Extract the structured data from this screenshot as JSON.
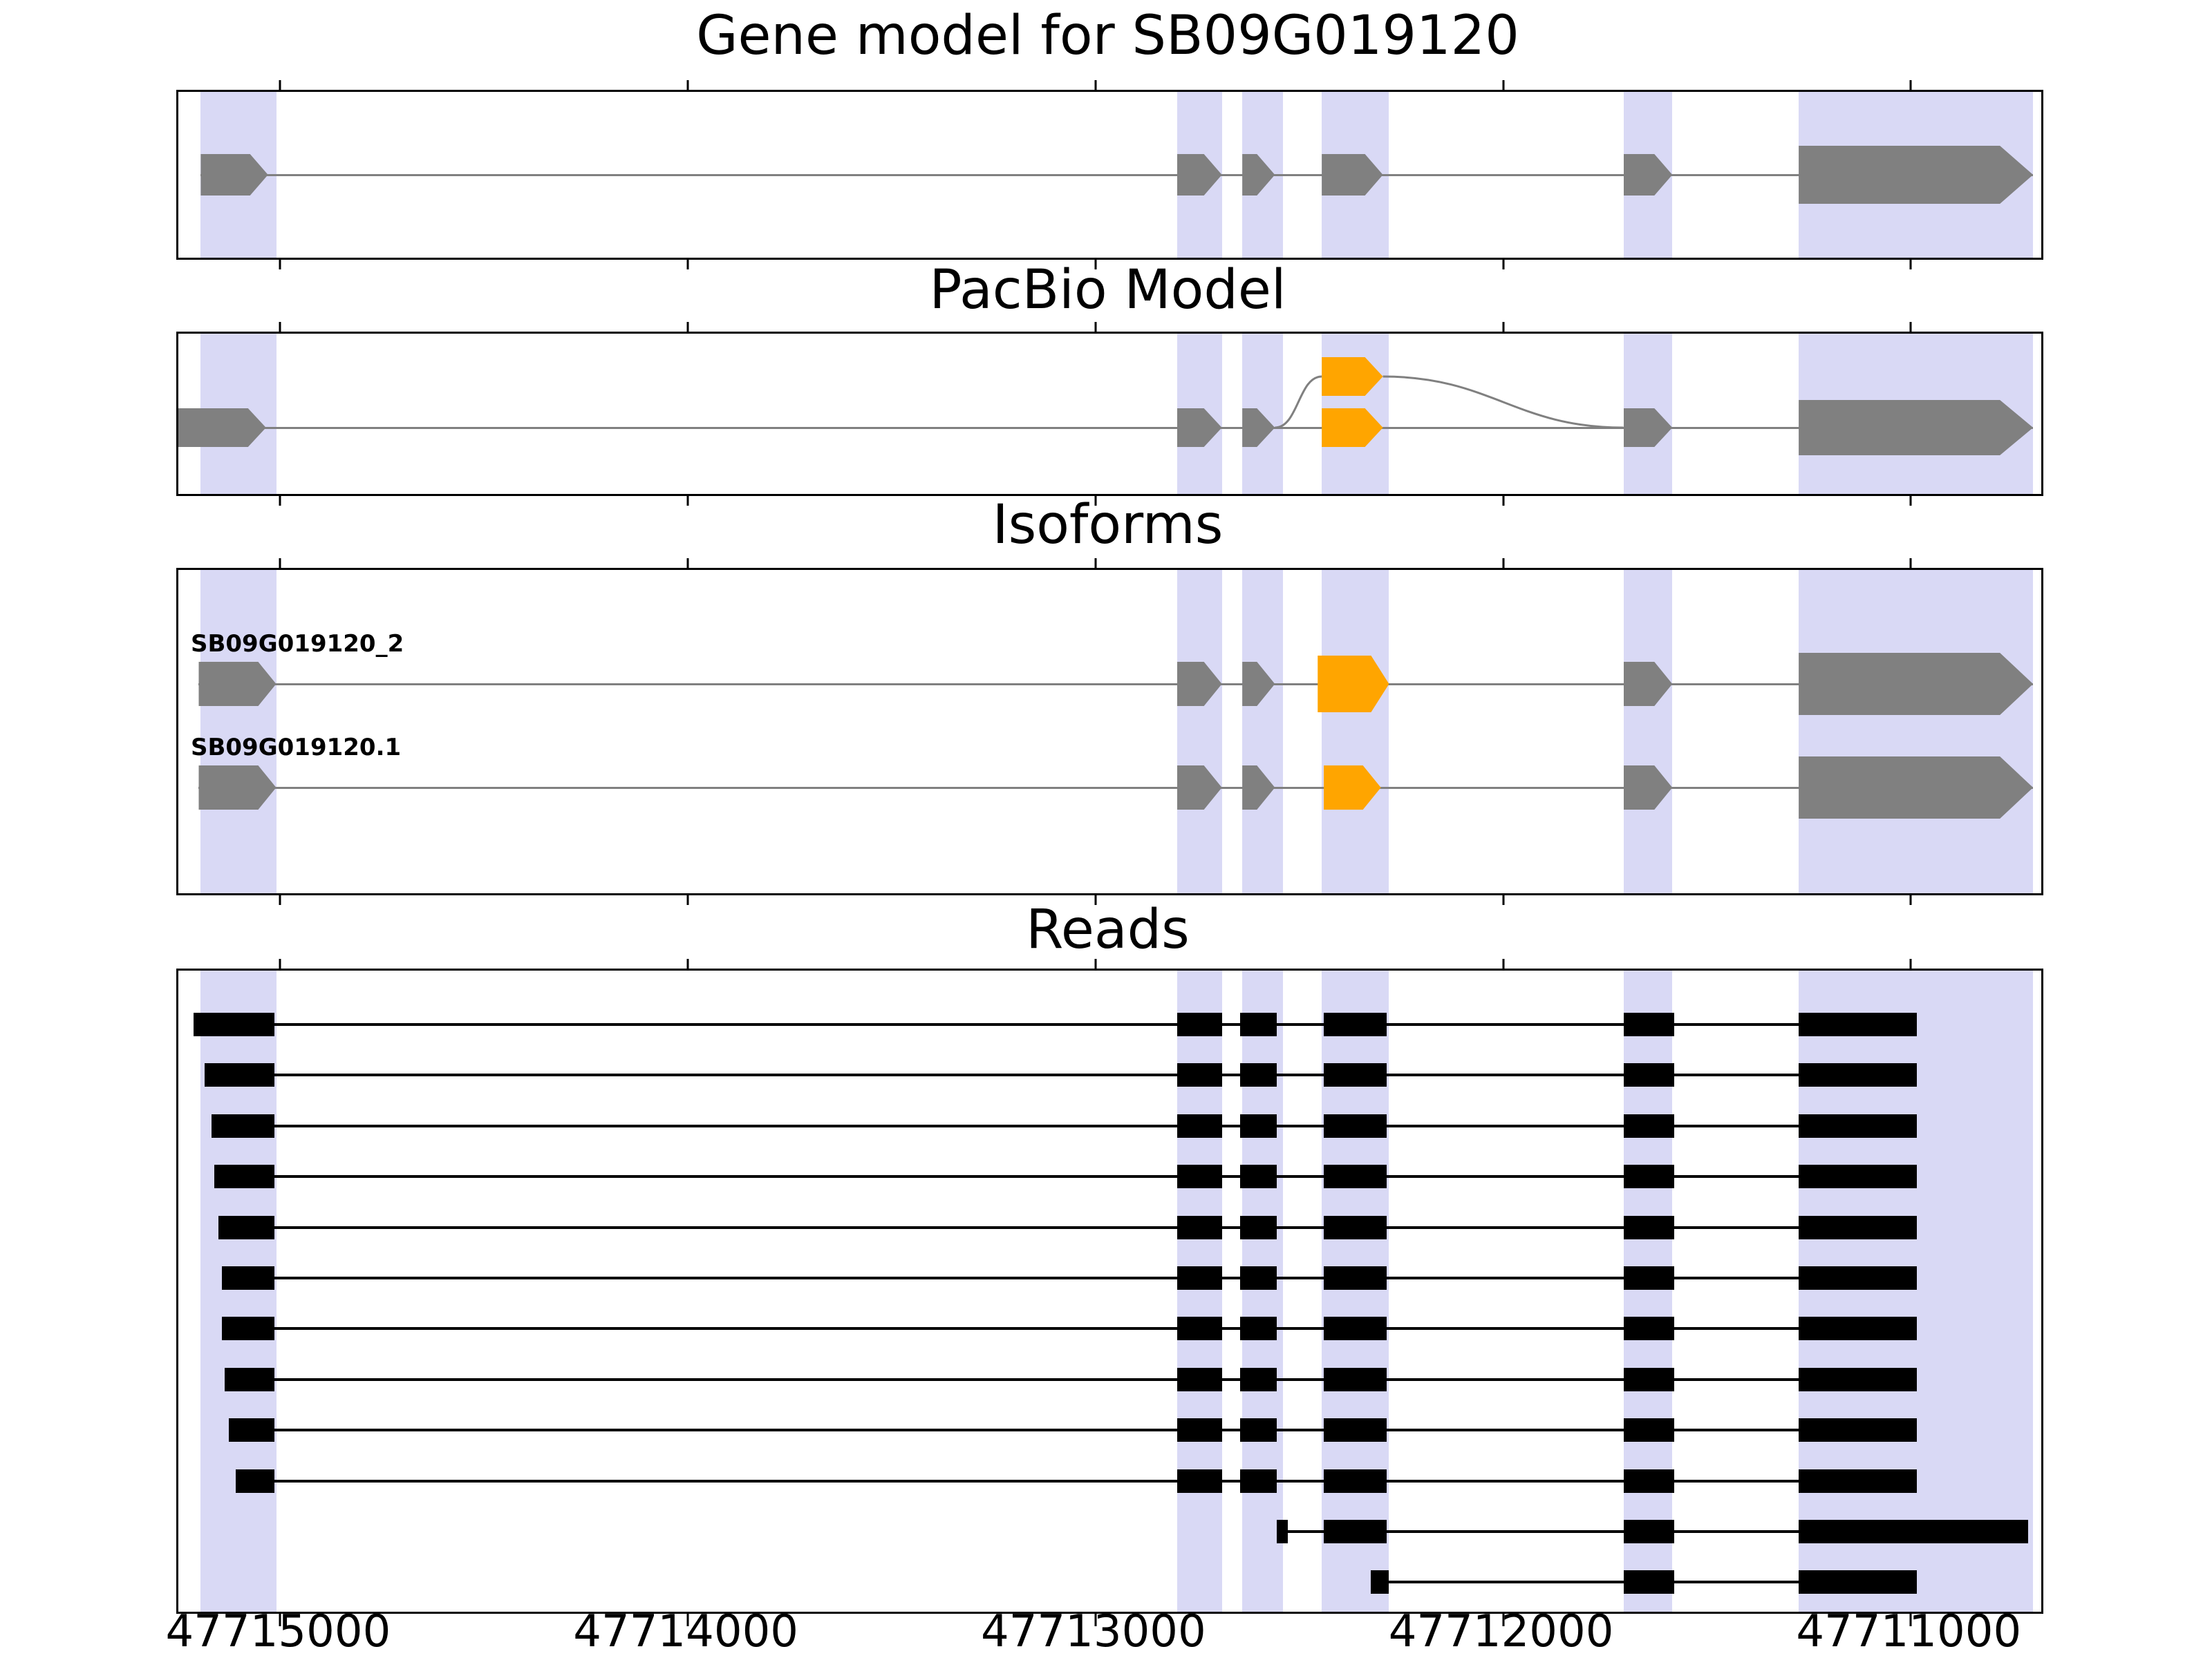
{
  "colors": {
    "background": "#ffffff",
    "band": "#d9d9f5",
    "gene": "#808080",
    "alt_exon": "#FFA500",
    "read": "#000000",
    "intron_line": "#808080",
    "border": "#000000"
  },
  "chart_data": {
    "type": "table",
    "description": "Genome-browser style figure with four stacked tracks (gene model, PacBio model, isoforms, long reads). X axis is genomic position in bp, decreasing left to right (minus-strand gene). Shaded vertical bands mark exon regions; orange exons mark the alternatively spliced exon.",
    "axis": {
      "left_value": 47715250,
      "right_value": 47710680,
      "ticks": [
        47715000,
        47714000,
        47713000,
        47712000,
        47711000
      ],
      "tick_labels": [
        "47715000",
        "47714000",
        "47713000",
        "47712000",
        "47711000"
      ]
    },
    "highlight_bands": [
      {
        "from": 47715195,
        "to": 47715010
      },
      {
        "from": 47712800,
        "to": 47712690
      },
      {
        "from": 47712640,
        "to": 47712540
      },
      {
        "from": 47712445,
        "to": 47712280
      },
      {
        "from": 47711705,
        "to": 47711585
      },
      {
        "from": 47711275,
        "to": 47710700
      }
    ],
    "panels": {
      "gene_model": {
        "title": "Gene model for SB09G019120",
        "exons": [
          {
            "from": 47715195,
            "to": 47715030,
            "size": "normal"
          },
          {
            "from": 47712800,
            "to": 47712690,
            "size": "normal"
          },
          {
            "from": 47712640,
            "to": 47712560,
            "size": "normal"
          },
          {
            "from": 47712445,
            "to": 47712295,
            "size": "normal"
          },
          {
            "from": 47711705,
            "to": 47711585,
            "size": "normal"
          },
          {
            "from": 47711275,
            "to": 47710700,
            "size": "large"
          }
        ]
      },
      "pacbio_model": {
        "title": "PacBio Model",
        "exons": [
          {
            "from": 47715250,
            "to": 47715035,
            "size": "normal"
          },
          {
            "from": 47712800,
            "to": 47712690,
            "size": "normal"
          },
          {
            "from": 47712640,
            "to": 47712560,
            "size": "normal"
          },
          {
            "from": 47711705,
            "to": 47711585,
            "size": "normal"
          },
          {
            "from": 47711275,
            "to": 47710700,
            "size": "large"
          }
        ],
        "upper_alt_exon": {
          "from": 47712445,
          "to": 47712295,
          "color": "orange"
        },
        "main_alt_exon": {
          "from": 47712445,
          "to": 47712295,
          "color": "orange"
        }
      },
      "isoforms": {
        "title": "Isoforms",
        "rows": [
          {
            "label": "SB09G019120_2",
            "exons": [
              {
                "from": 47715200,
                "to": 47715010,
                "size": "normal"
              },
              {
                "from": 47712800,
                "to": 47712690,
                "size": "normal"
              },
              {
                "from": 47712640,
                "to": 47712560,
                "size": "normal"
              },
              {
                "from": 47712455,
                "to": 47712280,
                "size": "tall",
                "color": "orange"
              },
              {
                "from": 47711705,
                "to": 47711585,
                "size": "normal"
              },
              {
                "from": 47711275,
                "to": 47710700,
                "size": "large"
              }
            ]
          },
          {
            "label": "SB09G019120.1",
            "exons": [
              {
                "from": 47715200,
                "to": 47715010,
                "size": "normal"
              },
              {
                "from": 47712800,
                "to": 47712690,
                "size": "normal"
              },
              {
                "from": 47712640,
                "to": 47712560,
                "size": "normal"
              },
              {
                "from": 47712440,
                "to": 47712300,
                "size": "normal",
                "color": "orange"
              },
              {
                "from": 47711705,
                "to": 47711585,
                "size": "normal"
              },
              {
                "from": 47711275,
                "to": 47710700,
                "size": "large"
              }
            ]
          }
        ]
      },
      "reads": {
        "title": "Reads",
        "rows": [
          {
            "blocks": [
              [
                47715212,
                47715015
              ],
              [
                47712800,
                47712690
              ],
              [
                47712645,
                47712555
              ],
              [
                47712440,
                47712285
              ],
              [
                47711705,
                47711580
              ],
              [
                47711275,
                47710985
              ]
            ]
          },
          {
            "blocks": [
              [
                47715186,
                47715015
              ],
              [
                47712800,
                47712690
              ],
              [
                47712645,
                47712555
              ],
              [
                47712440,
                47712285
              ],
              [
                47711705,
                47711580
              ],
              [
                47711275,
                47710985
              ]
            ]
          },
          {
            "blocks": [
              [
                47715169,
                47715015
              ],
              [
                47712800,
                47712690
              ],
              [
                47712645,
                47712555
              ],
              [
                47712440,
                47712285
              ],
              [
                47711705,
                47711580
              ],
              [
                47711275,
                47710985
              ]
            ]
          },
          {
            "blocks": [
              [
                47715161,
                47715015
              ],
              [
                47712800,
                47712690
              ],
              [
                47712645,
                47712555
              ],
              [
                47712440,
                47712285
              ],
              [
                47711705,
                47711580
              ],
              [
                47711275,
                47710985
              ]
            ]
          },
          {
            "blocks": [
              [
                47715152,
                47715015
              ],
              [
                47712800,
                47712690
              ],
              [
                47712645,
                47712555
              ],
              [
                47712440,
                47712285
              ],
              [
                47711705,
                47711580
              ],
              [
                47711275,
                47710985
              ]
            ]
          },
          {
            "blocks": [
              [
                47715144,
                47715015
              ],
              [
                47712800,
                47712690
              ],
              [
                47712645,
                47712555
              ],
              [
                47712440,
                47712285
              ],
              [
                47711705,
                47711580
              ],
              [
                47711275,
                47710985
              ]
            ]
          },
          {
            "blocks": [
              [
                47715144,
                47715015
              ],
              [
                47712800,
                47712690
              ],
              [
                47712645,
                47712555
              ],
              [
                47712440,
                47712285
              ],
              [
                47711705,
                47711580
              ],
              [
                47711275,
                47710985
              ]
            ]
          },
          {
            "blocks": [
              [
                47715136,
                47715015
              ],
              [
                47712800,
                47712690
              ],
              [
                47712645,
                47712555
              ],
              [
                47712440,
                47712285
              ],
              [
                47711705,
                47711580
              ],
              [
                47711275,
                47710985
              ]
            ]
          },
          {
            "blocks": [
              [
                47715127,
                47715015
              ],
              [
                47712800,
                47712690
              ],
              [
                47712645,
                47712555
              ],
              [
                47712440,
                47712285
              ],
              [
                47711705,
                47711580
              ],
              [
                47711275,
                47710985
              ]
            ]
          },
          {
            "blocks": [
              [
                47715110,
                47715015
              ],
              [
                47712800,
                47712690
              ],
              [
                47712645,
                47712555
              ],
              [
                47712440,
                47712285
              ],
              [
                47711705,
                47711580
              ],
              [
                47711275,
                47710985
              ]
            ]
          },
          {
            "blocks": [
              [
                47712555,
                47712528
              ],
              [
                47712440,
                47712285
              ],
              [
                47711705,
                47711580
              ],
              [
                47711275,
                47710712
              ]
            ]
          },
          {
            "blocks": [
              [
                47712325,
                47712280
              ],
              [
                47711705,
                47711580
              ],
              [
                47711275,
                47710985
              ]
            ]
          }
        ]
      }
    }
  }
}
